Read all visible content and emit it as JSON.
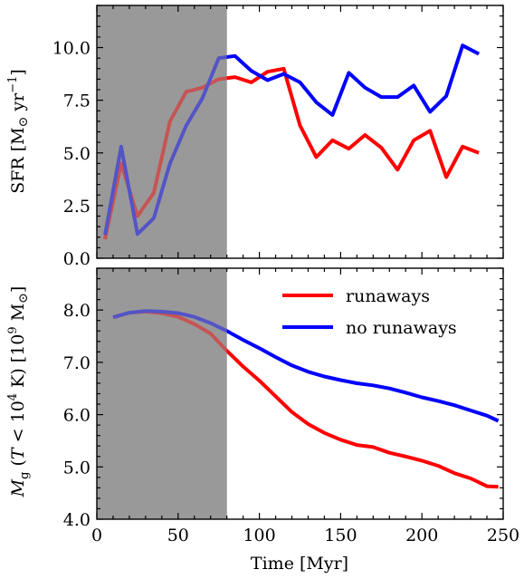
{
  "colors": {
    "runaways": "#ff0000",
    "no_runaways": "#0000ff",
    "shade": "#999999"
  },
  "chart_data": [
    {
      "type": "line",
      "xlabel": "",
      "ylabel": "SFR [M⊙ yr⁻¹]",
      "xlim": [
        0,
        250
      ],
      "ylim": [
        0,
        12.0
      ],
      "xticks": [
        0,
        50,
        100,
        150,
        200,
        250
      ],
      "yticks": [
        0.0,
        2.5,
        5.0,
        7.5,
        10.0
      ],
      "ytick_labels": [
        "0.0",
        "2.5",
        "5.0",
        "7.5",
        "10.0"
      ],
      "shaded_region": [
        0,
        80
      ],
      "series": [
        {
          "key": "runaways",
          "x": [
            5,
            15,
            25,
            35,
            45,
            55,
            65,
            75,
            85,
            95,
            105,
            115,
            125,
            135,
            145,
            155,
            165,
            175,
            185,
            195,
            205,
            215,
            225,
            235
          ],
          "values": [
            0.9,
            4.5,
            2.0,
            3.1,
            6.5,
            7.9,
            8.1,
            8.5,
            8.6,
            8.35,
            8.85,
            9.0,
            6.3,
            4.8,
            5.6,
            5.2,
            5.85,
            5.25,
            4.2,
            5.6,
            6.05,
            3.85,
            5.3,
            5.0
          ]
        },
        {
          "key": "no_runaways",
          "x": [
            5,
            15,
            25,
            35,
            45,
            55,
            65,
            75,
            85,
            95,
            105,
            115,
            125,
            135,
            145,
            155,
            165,
            175,
            185,
            195,
            205,
            215,
            225,
            235
          ],
          "values": [
            1.1,
            5.3,
            1.15,
            1.9,
            4.5,
            6.3,
            7.6,
            9.5,
            9.6,
            8.9,
            8.45,
            8.75,
            8.35,
            7.4,
            6.8,
            8.8,
            8.1,
            7.65,
            7.65,
            8.2,
            6.95,
            7.7,
            10.1,
            9.7
          ]
        }
      ]
    },
    {
      "type": "line",
      "xlabel": "Time [Myr]",
      "ylabel": "Mg (T < 10⁴ K) [10⁹ M⊙]",
      "xlim": [
        0,
        250
      ],
      "ylim": [
        4.0,
        8.8
      ],
      "xticks": [
        0,
        50,
        100,
        150,
        200,
        250
      ],
      "xtick_labels": [
        "0",
        "50",
        "100",
        "150",
        "200",
        "250"
      ],
      "yticks": [
        4.0,
        5.0,
        6.0,
        7.0,
        8.0
      ],
      "ytick_labels": [
        "4.0",
        "5.0",
        "6.0",
        "7.0",
        "8.0"
      ],
      "shaded_region": [
        0,
        80
      ],
      "legend": {
        "position": "upper-right",
        "entries": [
          {
            "key": "runaways",
            "label": "runaways"
          },
          {
            "key": "no_runaways",
            "label": "no runaways"
          }
        ]
      },
      "series": [
        {
          "key": "runaways",
          "name": "runaways",
          "x": [
            10,
            20,
            30,
            40,
            50,
            60,
            70,
            80,
            90,
            100,
            110,
            120,
            130,
            140,
            150,
            160,
            170,
            180,
            190,
            200,
            210,
            220,
            230,
            240,
            247
          ],
          "values": [
            7.86,
            7.95,
            7.97,
            7.94,
            7.87,
            7.73,
            7.55,
            7.22,
            6.92,
            6.65,
            6.35,
            6.05,
            5.82,
            5.65,
            5.52,
            5.42,
            5.38,
            5.27,
            5.2,
            5.12,
            5.02,
            4.88,
            4.78,
            4.63,
            4.62
          ]
        },
        {
          "key": "no_runaways",
          "name": "no runaways",
          "x": [
            10,
            20,
            30,
            40,
            50,
            60,
            70,
            80,
            90,
            100,
            110,
            120,
            130,
            140,
            150,
            160,
            170,
            180,
            190,
            200,
            210,
            220,
            230,
            240,
            247
          ],
          "values": [
            7.86,
            7.95,
            7.98,
            7.97,
            7.94,
            7.87,
            7.75,
            7.6,
            7.43,
            7.27,
            7.1,
            6.94,
            6.82,
            6.73,
            6.66,
            6.6,
            6.56,
            6.5,
            6.42,
            6.33,
            6.26,
            6.18,
            6.08,
            5.98,
            5.88
          ]
        }
      ]
    }
  ]
}
